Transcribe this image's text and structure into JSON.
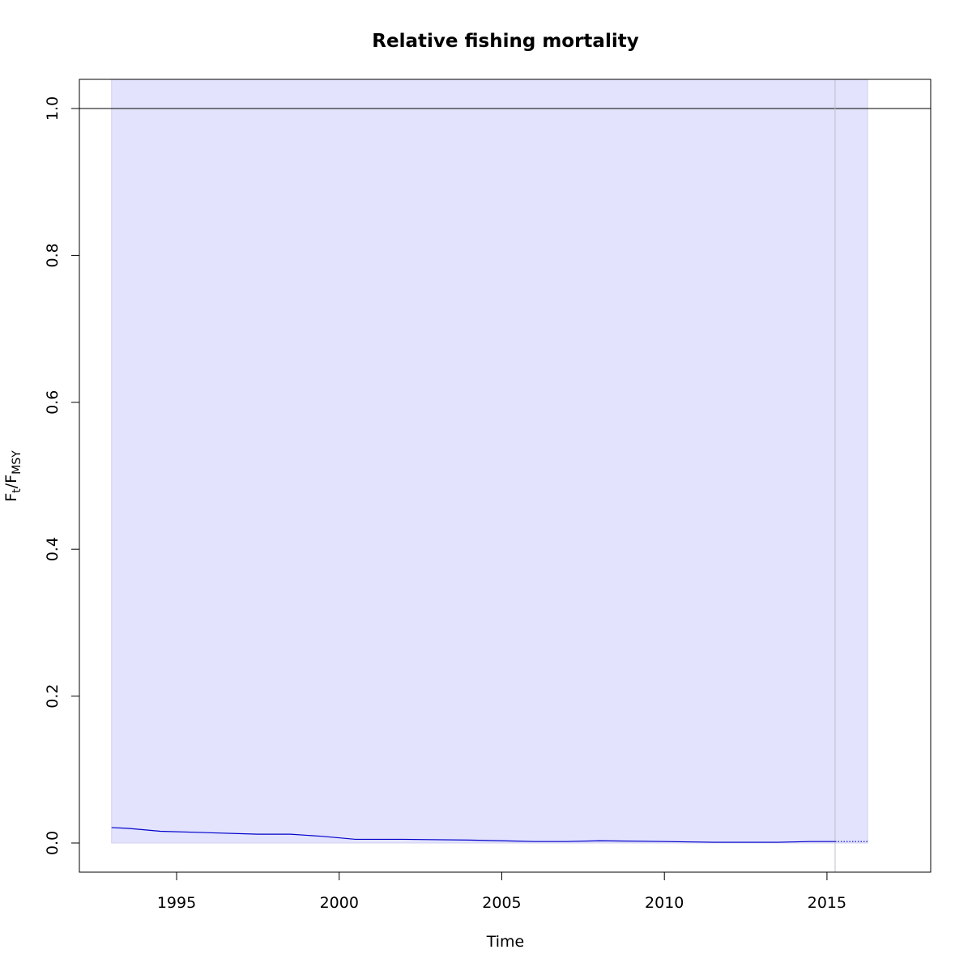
{
  "chart_data": {
    "type": "line",
    "title": "Relative fishing mortality",
    "x_label": "Time",
    "y_label": {
      "main": "F",
      "sub": "t",
      "main2": "/F",
      "sub2": "MSY"
    },
    "xlim": [
      1992.01,
      2018.19
    ],
    "ylim": [
      -0.0397,
      1.0397
    ],
    "xticks": [
      1995,
      2000,
      2005,
      2010,
      2015
    ],
    "yticks": [
      {
        "value": 0,
        "label": "0.0"
      },
      {
        "value": 0.2,
        "label": "0.2"
      },
      {
        "value": 0.4,
        "label": "0.4"
      },
      {
        "value": 0.6,
        "label": "0.6"
      },
      {
        "value": 0.8,
        "label": "0.8"
      },
      {
        "value": 1,
        "label": "1.0"
      }
    ],
    "band": {
      "x": [
        1993,
        2016.25
      ],
      "lower": 0,
      "upper": 1.0397,
      "color": "#e3e3fd"
    },
    "reference_line": 1,
    "vertical_line": 2015.25,
    "series": [
      {
        "color": "#0000cc",
        "dash": "solid",
        "x": [
          1993,
          1993.5,
          1994.5,
          1996,
          1997.5,
          1998.5,
          1999.5,
          2000.5,
          2002,
          2004,
          2006,
          2007,
          2008,
          2010,
          2011.5,
          2013.5,
          2014.5,
          2015.25
        ],
        "values": [
          0.021,
          0.02,
          0.016,
          0.014,
          0.012,
          0.012,
          0.009,
          0.005,
          0.005,
          0.004,
          0.002,
          0.002,
          0.003,
          0.002,
          0.001,
          0.001,
          0.002,
          0.002
        ]
      },
      {
        "color": "#0000cc",
        "dash": "dotted",
        "x": [
          2015.25,
          2016.25
        ],
        "values": [
          0.002,
          0.002
        ]
      }
    ]
  }
}
